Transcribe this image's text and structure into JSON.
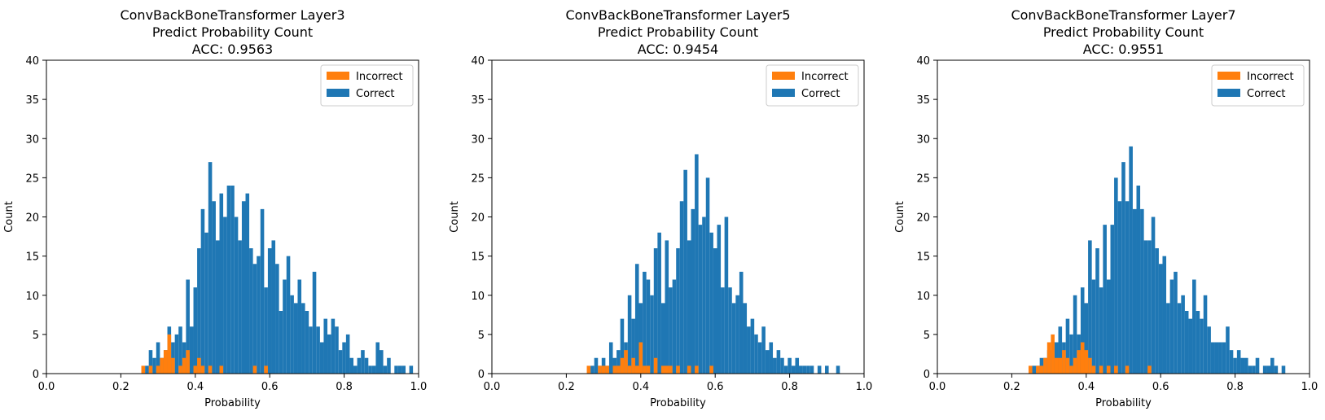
{
  "chart_data": [
    {
      "type": "bar",
      "title_lines": [
        "ConvBackBoneTransformer Layer3",
        "Predict Probability Count",
        "ACC: 0.9563"
      ],
      "xlabel": "Probability",
      "ylabel": "Count",
      "xlim": [
        0,
        1
      ],
      "ylim": [
        0,
        40
      ],
      "xticks": [
        "0.0",
        "0.2",
        "0.4",
        "0.6",
        "0.8",
        "1.0"
      ],
      "yticks": [
        "0",
        "5",
        "10",
        "15",
        "20",
        "25",
        "30",
        "35",
        "40"
      ],
      "legend_position": "top-right",
      "series": [
        {
          "name": "Correct",
          "color": "#1f77b4",
          "values": [
            [
              0.27,
              1
            ],
            [
              0.28,
              3
            ],
            [
              0.29,
              2
            ],
            [
              0.3,
              4
            ],
            [
              0.31,
              2
            ],
            [
              0.32,
              3
            ],
            [
              0.33,
              6
            ],
            [
              0.34,
              4
            ],
            [
              0.35,
              5
            ],
            [
              0.36,
              6
            ],
            [
              0.37,
              4
            ],
            [
              0.38,
              12
            ],
            [
              0.39,
              6
            ],
            [
              0.4,
              11
            ],
            [
              0.41,
              16
            ],
            [
              0.42,
              21
            ],
            [
              0.43,
              18
            ],
            [
              0.44,
              27
            ],
            [
              0.45,
              22
            ],
            [
              0.46,
              17
            ],
            [
              0.47,
              23
            ],
            [
              0.48,
              20
            ],
            [
              0.49,
              24
            ],
            [
              0.5,
              24
            ],
            [
              0.51,
              20
            ],
            [
              0.52,
              17
            ],
            [
              0.53,
              22
            ],
            [
              0.54,
              23
            ],
            [
              0.55,
              16
            ],
            [
              0.56,
              14
            ],
            [
              0.57,
              15
            ],
            [
              0.58,
              21
            ],
            [
              0.59,
              11
            ],
            [
              0.6,
              16
            ],
            [
              0.61,
              17
            ],
            [
              0.62,
              14
            ],
            [
              0.63,
              8
            ],
            [
              0.64,
              12
            ],
            [
              0.65,
              15
            ],
            [
              0.66,
              10
            ],
            [
              0.67,
              9
            ],
            [
              0.68,
              12
            ],
            [
              0.69,
              9
            ],
            [
              0.7,
              8
            ],
            [
              0.71,
              6
            ],
            [
              0.72,
              13
            ],
            [
              0.73,
              6
            ],
            [
              0.74,
              4
            ],
            [
              0.75,
              7
            ],
            [
              0.76,
              5
            ],
            [
              0.77,
              7
            ],
            [
              0.78,
              6
            ],
            [
              0.79,
              3
            ],
            [
              0.8,
              4
            ],
            [
              0.81,
              5
            ],
            [
              0.82,
              2
            ],
            [
              0.83,
              1
            ],
            [
              0.84,
              2
            ],
            [
              0.85,
              3
            ],
            [
              0.86,
              2
            ],
            [
              0.87,
              1
            ],
            [
              0.88,
              1
            ],
            [
              0.89,
              4
            ],
            [
              0.9,
              3
            ],
            [
              0.91,
              1
            ],
            [
              0.92,
              2
            ],
            [
              0.94,
              1
            ],
            [
              0.95,
              1
            ],
            [
              0.96,
              1
            ],
            [
              0.98,
              1
            ]
          ]
        },
        {
          "name": "Incorrect",
          "color": "#ff7f0e",
          "values": [
            [
              0.26,
              1
            ],
            [
              0.28,
              1
            ],
            [
              0.3,
              1
            ],
            [
              0.31,
              2
            ],
            [
              0.32,
              3
            ],
            [
              0.33,
              5
            ],
            [
              0.34,
              2
            ],
            [
              0.36,
              1
            ],
            [
              0.37,
              2
            ],
            [
              0.38,
              3
            ],
            [
              0.4,
              1
            ],
            [
              0.41,
              2
            ],
            [
              0.42,
              1
            ],
            [
              0.44,
              1
            ],
            [
              0.47,
              1
            ],
            [
              0.56,
              1
            ],
            [
              0.59,
              1
            ]
          ]
        }
      ]
    },
    {
      "type": "bar",
      "title_lines": [
        "ConvBackBoneTransformer Layer5",
        "Predict Probability Count",
        "ACC: 0.9454"
      ],
      "xlabel": "Probability",
      "ylabel": "Count",
      "xlim": [
        0,
        1
      ],
      "ylim": [
        0,
        40
      ],
      "xticks": [
        "0.0",
        "0.2",
        "0.4",
        "0.6",
        "0.8",
        "1.0"
      ],
      "yticks": [
        "0",
        "5",
        "10",
        "15",
        "20",
        "25",
        "30",
        "35",
        "40"
      ],
      "legend_position": "top-right",
      "series": [
        {
          "name": "Correct",
          "color": "#1f77b4",
          "values": [
            [
              0.27,
              1
            ],
            [
              0.28,
              2
            ],
            [
              0.29,
              1
            ],
            [
              0.3,
              2
            ],
            [
              0.31,
              1
            ],
            [
              0.32,
              4
            ],
            [
              0.33,
              2
            ],
            [
              0.34,
              3
            ],
            [
              0.35,
              7
            ],
            [
              0.36,
              4
            ],
            [
              0.37,
              10
            ],
            [
              0.38,
              7
            ],
            [
              0.39,
              14
            ],
            [
              0.4,
              9
            ],
            [
              0.41,
              13
            ],
            [
              0.42,
              12
            ],
            [
              0.43,
              10
            ],
            [
              0.44,
              16
            ],
            [
              0.45,
              18
            ],
            [
              0.46,
              9
            ],
            [
              0.47,
              17
            ],
            [
              0.48,
              11
            ],
            [
              0.49,
              12
            ],
            [
              0.5,
              16
            ],
            [
              0.51,
              22
            ],
            [
              0.52,
              26
            ],
            [
              0.53,
              17
            ],
            [
              0.54,
              21
            ],
            [
              0.55,
              28
            ],
            [
              0.56,
              19
            ],
            [
              0.57,
              20
            ],
            [
              0.58,
              25
            ],
            [
              0.59,
              18
            ],
            [
              0.6,
              16
            ],
            [
              0.61,
              19
            ],
            [
              0.62,
              11
            ],
            [
              0.63,
              20
            ],
            [
              0.64,
              11
            ],
            [
              0.65,
              9
            ],
            [
              0.66,
              10
            ],
            [
              0.67,
              13
            ],
            [
              0.68,
              9
            ],
            [
              0.69,
              6
            ],
            [
              0.7,
              7
            ],
            [
              0.71,
              5
            ],
            [
              0.72,
              4
            ],
            [
              0.73,
              6
            ],
            [
              0.74,
              3
            ],
            [
              0.75,
              4
            ],
            [
              0.76,
              2
            ],
            [
              0.77,
              3
            ],
            [
              0.78,
              2
            ],
            [
              0.79,
              1
            ],
            [
              0.8,
              2
            ],
            [
              0.81,
              1
            ],
            [
              0.82,
              2
            ],
            [
              0.83,
              1
            ],
            [
              0.84,
              1
            ],
            [
              0.85,
              1
            ],
            [
              0.86,
              1
            ],
            [
              0.88,
              1
            ],
            [
              0.9,
              1
            ],
            [
              0.93,
              1
            ]
          ]
        },
        {
          "name": "Incorrect",
          "color": "#ff7f0e",
          "values": [
            [
              0.26,
              1
            ],
            [
              0.29,
              1
            ],
            [
              0.3,
              1
            ],
            [
              0.31,
              1
            ],
            [
              0.33,
              1
            ],
            [
              0.34,
              1
            ],
            [
              0.35,
              2
            ],
            [
              0.36,
              3
            ],
            [
              0.37,
              1
            ],
            [
              0.38,
              2
            ],
            [
              0.39,
              1
            ],
            [
              0.4,
              4
            ],
            [
              0.41,
              1
            ],
            [
              0.42,
              1
            ],
            [
              0.44,
              2
            ],
            [
              0.46,
              1
            ],
            [
              0.47,
              1
            ],
            [
              0.48,
              1
            ],
            [
              0.5,
              1
            ],
            [
              0.53,
              1
            ],
            [
              0.55,
              1
            ],
            [
              0.59,
              1
            ]
          ]
        }
      ]
    },
    {
      "type": "bar",
      "title_lines": [
        "ConvBackBoneTransformer Layer7",
        "Predict Probability Count",
        "ACC: 0.9551"
      ],
      "xlabel": "Probability",
      "ylabel": "Count",
      "xlim": [
        0,
        1
      ],
      "ylim": [
        0,
        40
      ],
      "xticks": [
        "0.0",
        "0.2",
        "0.4",
        "0.6",
        "0.8",
        "1.0"
      ],
      "yticks": [
        "0",
        "5",
        "10",
        "15",
        "20",
        "25",
        "30",
        "35",
        "40"
      ],
      "legend_position": "top-right",
      "series": [
        {
          "name": "Correct",
          "color": "#1f77b4",
          "values": [
            [
              0.26,
              1
            ],
            [
              0.27,
              1
            ],
            [
              0.28,
              2
            ],
            [
              0.29,
              2
            ],
            [
              0.3,
              3
            ],
            [
              0.31,
              2
            ],
            [
              0.32,
              4
            ],
            [
              0.33,
              6
            ],
            [
              0.34,
              4
            ],
            [
              0.35,
              7
            ],
            [
              0.36,
              5
            ],
            [
              0.37,
              10
            ],
            [
              0.38,
              5
            ],
            [
              0.39,
              11
            ],
            [
              0.4,
              9
            ],
            [
              0.41,
              17
            ],
            [
              0.42,
              12
            ],
            [
              0.43,
              16
            ],
            [
              0.44,
              11
            ],
            [
              0.45,
              19
            ],
            [
              0.46,
              12
            ],
            [
              0.47,
              19
            ],
            [
              0.48,
              25
            ],
            [
              0.49,
              22
            ],
            [
              0.5,
              27
            ],
            [
              0.51,
              22
            ],
            [
              0.52,
              29
            ],
            [
              0.53,
              21
            ],
            [
              0.54,
              24
            ],
            [
              0.55,
              21
            ],
            [
              0.56,
              17
            ],
            [
              0.57,
              17
            ],
            [
              0.58,
              20
            ],
            [
              0.59,
              16
            ],
            [
              0.6,
              14
            ],
            [
              0.61,
              15
            ],
            [
              0.62,
              9
            ],
            [
              0.63,
              12
            ],
            [
              0.64,
              13
            ],
            [
              0.65,
              9
            ],
            [
              0.66,
              10
            ],
            [
              0.67,
              8
            ],
            [
              0.68,
              7
            ],
            [
              0.69,
              12
            ],
            [
              0.7,
              8
            ],
            [
              0.71,
              7
            ],
            [
              0.72,
              10
            ],
            [
              0.73,
              6
            ],
            [
              0.74,
              4
            ],
            [
              0.75,
              4
            ],
            [
              0.76,
              4
            ],
            [
              0.77,
              4
            ],
            [
              0.78,
              6
            ],
            [
              0.79,
              3
            ],
            [
              0.8,
              2
            ],
            [
              0.81,
              3
            ],
            [
              0.82,
              2
            ],
            [
              0.83,
              2
            ],
            [
              0.84,
              1
            ],
            [
              0.85,
              1
            ],
            [
              0.86,
              2
            ],
            [
              0.88,
              1
            ],
            [
              0.89,
              1
            ],
            [
              0.9,
              2
            ],
            [
              0.91,
              1
            ],
            [
              0.93,
              1
            ]
          ]
        },
        {
          "name": "Incorrect",
          "color": "#ff7f0e",
          "values": [
            [
              0.25,
              1
            ],
            [
              0.27,
              1
            ],
            [
              0.28,
              1
            ],
            [
              0.29,
              2
            ],
            [
              0.3,
              4
            ],
            [
              0.31,
              5
            ],
            [
              0.32,
              2
            ],
            [
              0.33,
              2
            ],
            [
              0.34,
              3
            ],
            [
              0.35,
              2
            ],
            [
              0.36,
              1
            ],
            [
              0.37,
              2
            ],
            [
              0.38,
              3
            ],
            [
              0.39,
              4
            ],
            [
              0.4,
              3
            ],
            [
              0.41,
              2
            ],
            [
              0.42,
              1
            ],
            [
              0.44,
              1
            ],
            [
              0.46,
              1
            ],
            [
              0.48,
              1
            ],
            [
              0.51,
              1
            ],
            [
              0.57,
              1
            ]
          ]
        }
      ]
    }
  ]
}
